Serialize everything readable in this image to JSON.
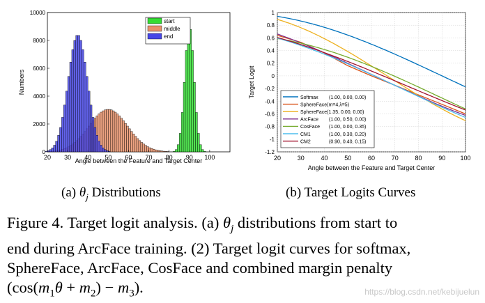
{
  "chart_data": [
    {
      "type": "bar",
      "panel": "a",
      "xlabel": "Angle between the Feature and Target Center",
      "ylabel": "Numbers",
      "xlim": [
        20,
        110
      ],
      "ylim": [
        0,
        10000
      ],
      "xticks": [
        20,
        30,
        40,
        50,
        60,
        70,
        80,
        90,
        100
      ],
      "yticks": [
        0,
        2000,
        4000,
        6000,
        8000,
        10000
      ],
      "bin_width": 1,
      "legend_position": "top-right",
      "series": [
        {
          "name": "start",
          "color": "#33dd33",
          "mean": 90,
          "sd": 2.3,
          "peak": 9000,
          "x": [
            86,
            87,
            88,
            89,
            90,
            91,
            92,
            93,
            94
          ],
          "values": [
            1600,
            3300,
            5700,
            7900,
            9000,
            7500,
            5000,
            2600,
            1100
          ]
        },
        {
          "name": "middle",
          "color": "#e8906a",
          "mean": 50,
          "sd": 9.5,
          "peak": 3050,
          "x": [
            30,
            35,
            40,
            45,
            50,
            55,
            60,
            65,
            70,
            75
          ],
          "values": [
            300,
            900,
            1800,
            2700,
            3050,
            2700,
            1900,
            1150,
            550,
            230
          ]
        },
        {
          "name": "end",
          "color": "#4646e6",
          "mean": 35,
          "sd": 4.8,
          "peak": 8400,
          "x": [
            26,
            28,
            30,
            32,
            34,
            35,
            36,
            38,
            40,
            42,
            44
          ],
          "values": [
            1100,
            2700,
            4500,
            6600,
            8100,
            8400,
            8100,
            6500,
            4400,
            2600,
            1200
          ]
        }
      ]
    },
    {
      "type": "line",
      "panel": "b",
      "xlabel": "Angle between the Feature and Target Center",
      "ylabel": "Target Logit",
      "xlim": [
        20,
        100
      ],
      "ylim": [
        -1.2,
        1
      ],
      "xticks": [
        20,
        30,
        40,
        50,
        60,
        70,
        80,
        90,
        100
      ],
      "yticks": [
        -1.2,
        -1,
        -0.8,
        -0.6,
        -0.4,
        -0.2,
        0,
        0.2,
        0.4,
        0.6,
        0.8,
        1
      ],
      "grid": true,
      "legend_position": "bottom-left",
      "x": [
        20,
        30,
        40,
        50,
        60,
        70,
        80,
        90,
        100
      ],
      "series": [
        {
          "name": "Softmax",
          "params": "(1.00, 0.00, 0.00)",
          "color": "#0072bd",
          "m1": 1.0,
          "m2": 0.0,
          "m3": 0.0,
          "values": [
            0.94,
            0.866,
            0.766,
            0.643,
            0.5,
            0.342,
            0.174,
            0.0,
            -0.174
          ]
        },
        {
          "name": "SphereFace(m=4,λ=5)",
          "params": "",
          "color": "#d95319",
          "values": [
            0.64,
            0.53,
            0.36,
            0.16,
            0.0,
            -0.15,
            -0.3,
            -0.45,
            -0.6
          ]
        },
        {
          "name": "SphereFace(1.35, 0.00, 0.00)",
          "params": "",
          "color": "#edb120",
          "m1": 1.35,
          "m2": 0.0,
          "m3": 0.0,
          "values": [
            0.887,
            0.743,
            0.559,
            0.345,
            0.111,
            -0.129,
            -0.358,
            -0.562,
            -0.719
          ]
        },
        {
          "name": "ArcFace",
          "params": "(1.00, 0.50, 0.00)",
          "color": "#7e2f8e",
          "m1": 1.0,
          "m2": 0.5,
          "m3": 0.0,
          "values": [
            0.635,
            0.512,
            0.371,
            0.217,
            0.054,
            -0.113,
            -0.276,
            -0.43,
            -0.568
          ]
        },
        {
          "name": "CosFace",
          "params": "(1.00, 0.00, 0.35)",
          "color": "#77ac30",
          "m1": 1.0,
          "m2": 0.0,
          "m3": 0.35,
          "values": [
            0.59,
            0.516,
            0.416,
            0.293,
            0.15,
            -0.008,
            -0.176,
            -0.35,
            -0.524
          ]
        },
        {
          "name": "CM1",
          "params": "(1.00, 0.30, 0.20)",
          "color": "#4dbeee",
          "m1": 1.0,
          "m2": 0.3,
          "m3": 0.2,
          "values": [
            0.578,
            0.444,
            0.295,
            0.136,
            -0.029,
            -0.195,
            -0.354,
            -0.503,
            -0.635
          ]
        },
        {
          "name": "CM2",
          "params": "(0.90, 0.40, 0.15)",
          "color": "#a2142f",
          "m1": 0.9,
          "m2": 0.4,
          "m3": 0.15,
          "values": [
            0.626,
            0.514,
            0.386,
            0.245,
            0.096,
            -0.057,
            -0.208,
            -0.352,
            -0.485
          ]
        }
      ]
    }
  ],
  "subcaptions": [
    {
      "prefix": "(a)",
      "math": "θ",
      "sub": "j",
      "text": "Distributions"
    },
    {
      "prefix": "(b)",
      "text": "Target Logits Curves"
    }
  ],
  "caption": {
    "line1_a": "Figure 4. Target logit analysis. (a)",
    "line1_math": "θ",
    "line1_sub": "j",
    "line1_b": "distributions from start to",
    "line2": "end during ArcFace training. (2) Target logit curves for softmax,",
    "line3": "SphereFace, ArcFace, CosFace and combined margin penalty",
    "line4_open": "(cos(",
    "line4_m1": "m",
    "line4_s1": "1",
    "line4_theta": "θ",
    "line4_plus": " + ",
    "line4_m2": "m",
    "line4_s2": "2",
    "line4_minus": ") − ",
    "line4_m3": "m",
    "line4_s3": "3",
    "line4_close": ")."
  },
  "watermark": "https://blog.csdn.net/kebijuelun"
}
